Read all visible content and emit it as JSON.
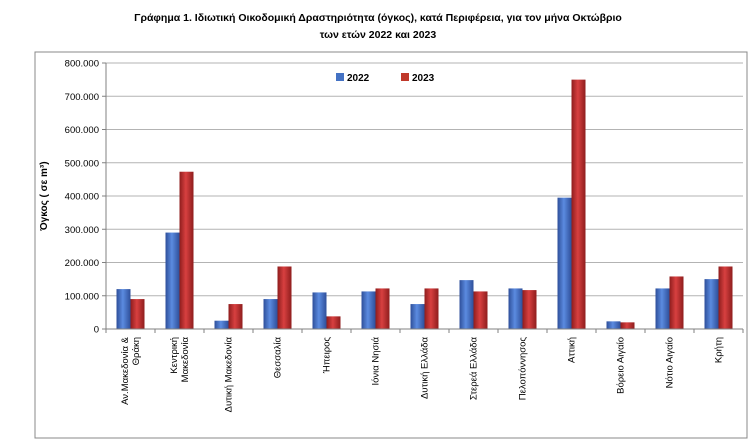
{
  "chart_data": {
    "type": "bar",
    "title_line1": "Γράφημα 1.  Ιδιωτική Οικοδομική Δραστηριότητα (όγκος), κατά Περιφέρεια, για τον μήνα Οκτώβριο",
    "title_line2": "των ετών 2022 και 2023",
    "ylabel": "Όγκος ( σε m³)",
    "xlabel": "",
    "ylim": [
      0,
      800000
    ],
    "yticks": [
      "0",
      "100.000",
      "200.000",
      "300.000",
      "400.000",
      "500.000",
      "600.000",
      "700.000",
      "800.000"
    ],
    "legend_position": "top-center",
    "grid": "horizontal",
    "categories": [
      "Αν.Μακεδονία & Θράκη",
      "Κεντρική Μακεδονία",
      "Δυτική Μακεδονία",
      "Θεσσαλία",
      "Ήπειρος",
      "Ιόνια Νησιά",
      "Δυτική Ελλάδα",
      "Στερεά Ελλάδα",
      "Πελοπόννησος",
      "Αττική",
      "Βόρειο Αιγαίο",
      "Νότιο Αιγαίο",
      "Κρήτη"
    ],
    "series": [
      {
        "name": "2022",
        "color": "#4472c4",
        "values": [
          120000,
          290000,
          25000,
          90000,
          110000,
          113000,
          75000,
          147000,
          122000,
          395000,
          23000,
          122000,
          150000
        ]
      },
      {
        "name": "2023",
        "color": "#c0392b",
        "values": [
          90000,
          473000,
          75000,
          188000,
          38000,
          122000,
          122000,
          113000,
          117000,
          750000,
          20000,
          158000,
          188000
        ]
      }
    ]
  }
}
